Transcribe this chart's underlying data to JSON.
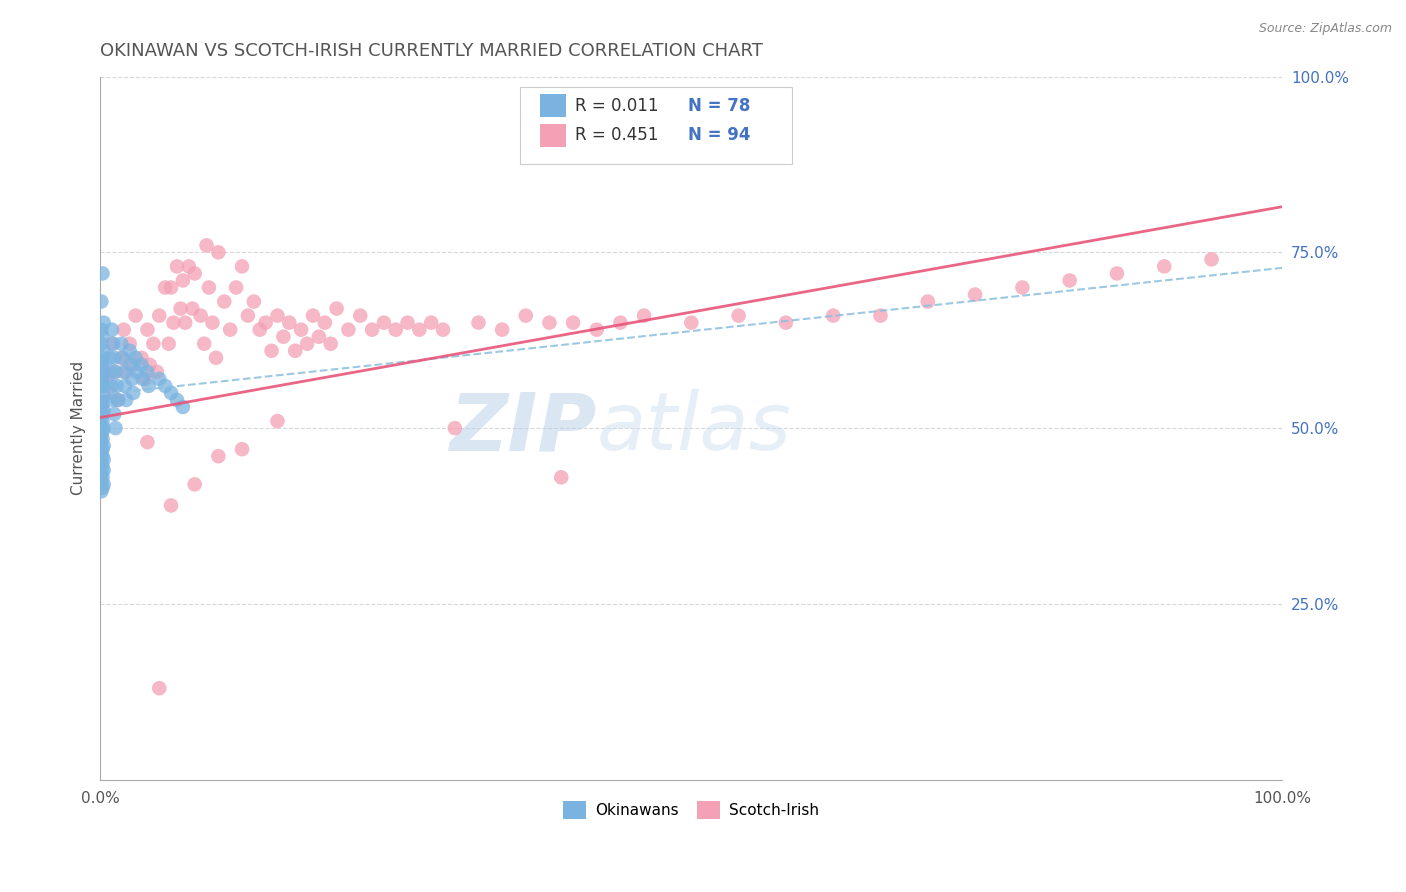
{
  "title": "OKINAWAN VS SCOTCH-IRISH CURRENTLY MARRIED CORRELATION CHART",
  "source": "Source: ZipAtlas.com",
  "ylabel": "Currently Married",
  "xlim": [
    0.0,
    1.0
  ],
  "ylim": [
    0.0,
    1.0
  ],
  "xtick_labels": [
    "0.0%",
    "100.0%"
  ],
  "ytick_labels": [
    "25.0%",
    "50.0%",
    "75.0%",
    "100.0%"
  ],
  "ytick_positions": [
    0.25,
    0.5,
    0.75,
    1.0
  ],
  "watermark": "ZIPatlas",
  "color_okinawan": "#7ab3e0",
  "color_scotch": "#f4a0b5",
  "line_color_okinawan": "#8bbfdf",
  "line_color_scotch": "#e8557a",
  "grid_color": "#d8d8d8",
  "title_color": "#555555",
  "source_color": "#888888",
  "tick_color": "#4472c4",
  "title_fontsize": 13,
  "legend_r_color": "#333333",
  "legend_n_color": "#4472c4",
  "okinawan_x": [
    0.002,
    0.001,
    0.003,
    0.001,
    0.002,
    0.001,
    0.003,
    0.002,
    0.001,
    0.002,
    0.001,
    0.003,
    0.002,
    0.001,
    0.002,
    0.003,
    0.001,
    0.002,
    0.003,
    0.001,
    0.002,
    0.001,
    0.003,
    0.002,
    0.001,
    0.002,
    0.001,
    0.003,
    0.002,
    0.001,
    0.002,
    0.001,
    0.003,
    0.002,
    0.001,
    0.002,
    0.003,
    0.001,
    0.002,
    0.003,
    0.001,
    0.002,
    0.001,
    0.003,
    0.002,
    0.001,
    0.008,
    0.009,
    0.01,
    0.011,
    0.012,
    0.013,
    0.01,
    0.011,
    0.012,
    0.013,
    0.014,
    0.015,
    0.018,
    0.019,
    0.02,
    0.021,
    0.022,
    0.025,
    0.026,
    0.027,
    0.028,
    0.03,
    0.031,
    0.035,
    0.036,
    0.04,
    0.041,
    0.05,
    0.055,
    0.06,
    0.065,
    0.07
  ],
  "okinawan_y": [
    0.72,
    0.68,
    0.65,
    0.64,
    0.63,
    0.62,
    0.61,
    0.6,
    0.595,
    0.59,
    0.585,
    0.58,
    0.575,
    0.57,
    0.565,
    0.56,
    0.555,
    0.55,
    0.545,
    0.54,
    0.535,
    0.53,
    0.525,
    0.52,
    0.515,
    0.51,
    0.505,
    0.5,
    0.495,
    0.49,
    0.485,
    0.48,
    0.475,
    0.47,
    0.465,
    0.46,
    0.455,
    0.45,
    0.445,
    0.44,
    0.435,
    0.43,
    0.425,
    0.42,
    0.415,
    0.41,
    0.6,
    0.58,
    0.56,
    0.54,
    0.52,
    0.5,
    0.64,
    0.62,
    0.6,
    0.58,
    0.56,
    0.54,
    0.62,
    0.6,
    0.58,
    0.56,
    0.54,
    0.61,
    0.59,
    0.57,
    0.55,
    0.6,
    0.58,
    0.59,
    0.57,
    0.58,
    0.56,
    0.57,
    0.56,
    0.55,
    0.54,
    0.53
  ],
  "scotch_x": [
    0.005,
    0.008,
    0.01,
    0.012,
    0.015,
    0.018,
    0.02,
    0.022,
    0.025,
    0.028,
    0.03,
    0.035,
    0.038,
    0.04,
    0.042,
    0.045,
    0.048,
    0.05,
    0.055,
    0.058,
    0.06,
    0.062,
    0.065,
    0.068,
    0.07,
    0.072,
    0.075,
    0.078,
    0.08,
    0.085,
    0.088,
    0.09,
    0.092,
    0.095,
    0.098,
    0.1,
    0.105,
    0.11,
    0.115,
    0.12,
    0.125,
    0.13,
    0.135,
    0.14,
    0.145,
    0.15,
    0.155,
    0.16,
    0.165,
    0.17,
    0.175,
    0.18,
    0.185,
    0.19,
    0.195,
    0.2,
    0.21,
    0.22,
    0.23,
    0.24,
    0.25,
    0.26,
    0.27,
    0.28,
    0.29,
    0.3,
    0.32,
    0.34,
    0.36,
    0.38,
    0.4,
    0.42,
    0.44,
    0.46,
    0.5,
    0.54,
    0.58,
    0.62,
    0.66,
    0.7,
    0.74,
    0.78,
    0.82,
    0.86,
    0.9,
    0.94,
    0.1,
    0.12,
    0.08,
    0.06,
    0.05,
    0.04,
    0.15,
    0.39
  ],
  "scotch_y": [
    0.57,
    0.55,
    0.62,
    0.58,
    0.54,
    0.6,
    0.64,
    0.58,
    0.62,
    0.59,
    0.66,
    0.6,
    0.57,
    0.64,
    0.59,
    0.62,
    0.58,
    0.66,
    0.7,
    0.62,
    0.7,
    0.65,
    0.73,
    0.67,
    0.71,
    0.65,
    0.73,
    0.67,
    0.72,
    0.66,
    0.62,
    0.76,
    0.7,
    0.65,
    0.6,
    0.75,
    0.68,
    0.64,
    0.7,
    0.73,
    0.66,
    0.68,
    0.64,
    0.65,
    0.61,
    0.66,
    0.63,
    0.65,
    0.61,
    0.64,
    0.62,
    0.66,
    0.63,
    0.65,
    0.62,
    0.67,
    0.64,
    0.66,
    0.64,
    0.65,
    0.64,
    0.65,
    0.64,
    0.65,
    0.64,
    0.5,
    0.65,
    0.64,
    0.66,
    0.65,
    0.65,
    0.64,
    0.65,
    0.66,
    0.65,
    0.66,
    0.65,
    0.66,
    0.66,
    0.68,
    0.69,
    0.7,
    0.71,
    0.72,
    0.73,
    0.74,
    0.46,
    0.47,
    0.42,
    0.39,
    0.13,
    0.48,
    0.51,
    0.43
  ]
}
